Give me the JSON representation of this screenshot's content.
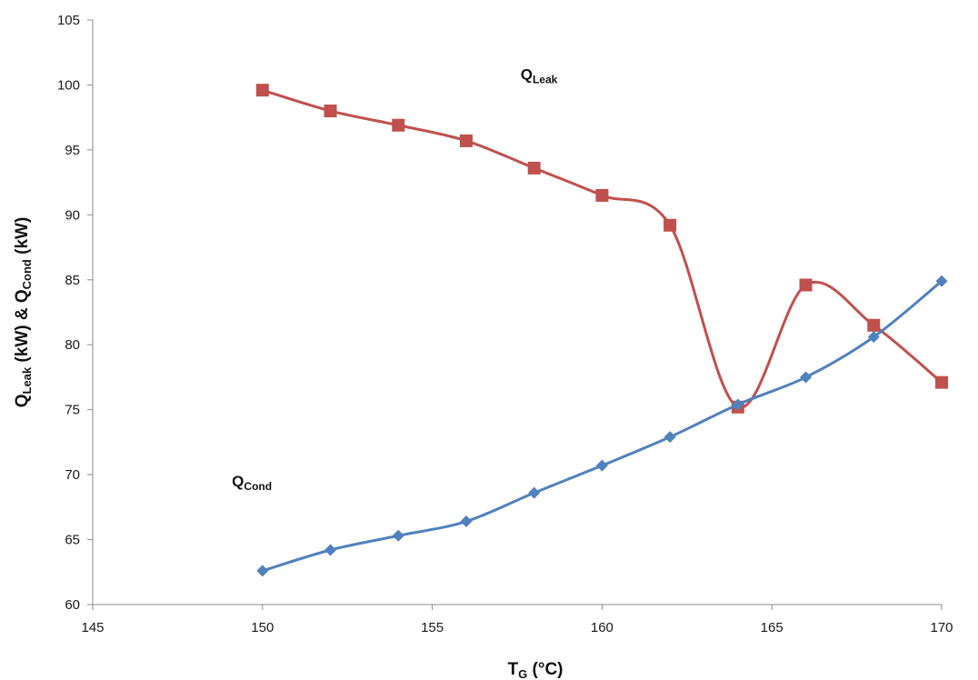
{
  "chart_data": {
    "type": "line",
    "x": [
      150,
      152,
      154,
      156,
      158,
      160,
      162,
      164,
      166,
      168,
      170
    ],
    "xlim": [
      145,
      170
    ],
    "ylim": [
      60,
      105
    ],
    "xticks": [
      145,
      150,
      155,
      160,
      165,
      170
    ],
    "yticks": [
      60,
      65,
      70,
      75,
      80,
      85,
      90,
      95,
      100,
      105
    ],
    "xlabel": {
      "main": "T",
      "sub": "G",
      "rest": " (°C)"
    },
    "ylabel": {
      "q1": "Q",
      "sub1": "Leak",
      "mid": " (kW) & Q",
      "sub2": "Cond",
      "rest": " (kW)"
    },
    "grid": false,
    "legend": "none",
    "series": [
      {
        "name": "QLeak",
        "color": "#c0504d",
        "marker": "square",
        "smooth": true,
        "values": [
          99.6,
          98.0,
          96.9,
          95.7,
          93.6,
          91.5,
          89.2,
          75.2,
          84.6,
          81.5,
          77.1
        ]
      },
      {
        "name": "QCond",
        "color": "#4f81bd",
        "marker": "diamond",
        "smooth": true,
        "values": [
          62.6,
          64.2,
          65.3,
          66.4,
          68.6,
          70.7,
          72.9,
          75.4,
          77.5,
          80.6,
          84.9
        ]
      }
    ],
    "annotations": [
      {
        "main": "Q",
        "sub": "Leak",
        "x": 157.6,
        "y": 100.4
      },
      {
        "main": "Q",
        "sub": "Cond",
        "x": 149.1,
        "y": 69.1
      }
    ]
  }
}
